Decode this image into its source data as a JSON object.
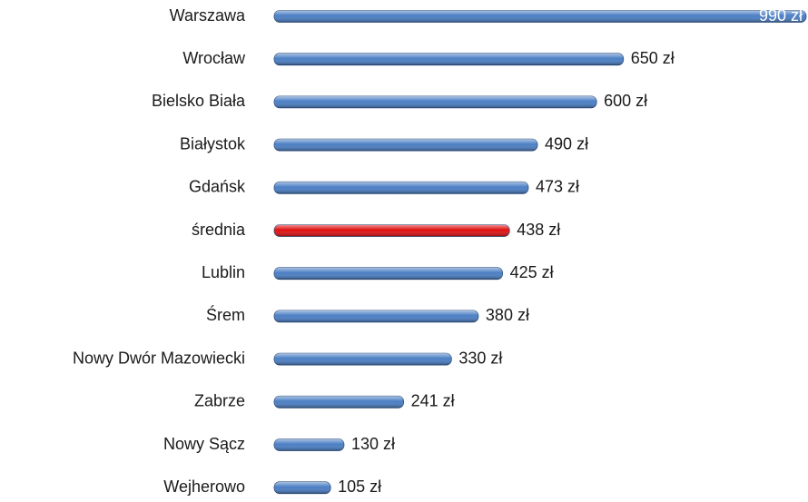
{
  "chart_data": {
    "type": "bar",
    "orientation": "horizontal",
    "categories": [
      "Warszawa",
      "Wrocław",
      "Bielsko Biała",
      "Białystok",
      "Gdańsk",
      "średnia",
      "Lublin",
      "Śrem",
      "Nowy Dwór Mazowiecki",
      "Zabrze",
      "Nowy Sącz",
      "Wejherowo"
    ],
    "values": [
      990,
      650,
      600,
      490,
      473,
      438,
      425,
      380,
      330,
      241,
      130,
      105
    ],
    "value_labels": [
      "990 zł",
      "650 zł",
      "600 zł",
      "490 zł",
      "473 zł",
      "438 zł",
      "425 zł",
      "380 zł",
      "330 zł",
      "241 zł",
      "130 zł",
      "105 zł"
    ],
    "colors": [
      "#4a7ec4",
      "#4a7ec4",
      "#4a7ec4",
      "#4a7ec4",
      "#4a7ec4",
      "#e01010",
      "#4a7ec4",
      "#4a7ec4",
      "#4a7ec4",
      "#4a7ec4",
      "#4a7ec4",
      "#4a7ec4"
    ]
  }
}
